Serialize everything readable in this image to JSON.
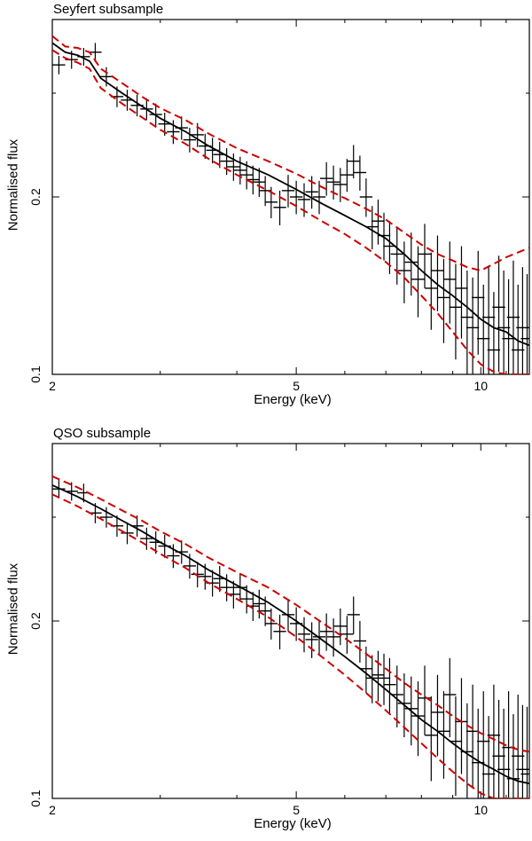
{
  "chart_data": [
    {
      "type": "line",
      "title": "Seyfert subsample",
      "xlabel": "Energy (keV)",
      "ylabel": "Normalised flux",
      "xscale": "log",
      "yscale": "log",
      "xlim": [
        2,
        12
      ],
      "ylim": [
        0.1,
        0.4
      ],
      "x_ticks": [
        {
          "value": 2,
          "label": "2"
        },
        {
          "value": 5,
          "label": "5"
        },
        {
          "value": 10,
          "label": "10"
        }
      ],
      "y_ticks": [
        {
          "value": 0.1,
          "label": "0.1"
        },
        {
          "value": 0.2,
          "label": "0.2"
        }
      ],
      "colors": {
        "model": "#000000",
        "envelope": "#cc0000",
        "data": "#000000"
      },
      "series": [
        {
          "name": "model",
          "style": "solid",
          "x": [
            2.0,
            2.1,
            2.2,
            2.3,
            2.4,
            2.6,
            2.8,
            3.0,
            3.3,
            3.6,
            4.0,
            4.5,
            5.0,
            5.5,
            6.0,
            6.5,
            7.0,
            7.5,
            8.0,
            8.5,
            9.0,
            9.5,
            10.0,
            10.5,
            11.0,
            11.5,
            12.0
          ],
          "y": [
            0.365,
            0.352,
            0.348,
            0.34,
            0.318,
            0.3,
            0.285,
            0.272,
            0.258,
            0.244,
            0.23,
            0.218,
            0.206,
            0.195,
            0.186,
            0.178,
            0.17,
            0.16,
            0.15,
            0.142,
            0.136,
            0.13,
            0.124,
            0.12,
            0.118,
            0.114,
            0.112
          ]
        },
        {
          "name": "upper envelope",
          "style": "dashed",
          "x": [
            2.0,
            2.1,
            2.2,
            2.3,
            2.4,
            2.6,
            2.8,
            3.0,
            3.3,
            3.6,
            4.0,
            4.5,
            5.0,
            5.5,
            6.0,
            6.5,
            7.0,
            7.5,
            8.0,
            8.5,
            9.0,
            9.5,
            10.0,
            10.5,
            11.0,
            11.5,
            12.0
          ],
          "y": [
            0.375,
            0.36,
            0.358,
            0.352,
            0.33,
            0.312,
            0.296,
            0.283,
            0.27,
            0.256,
            0.242,
            0.23,
            0.219,
            0.208,
            0.199,
            0.191,
            0.183,
            0.174,
            0.166,
            0.16,
            0.156,
            0.152,
            0.15,
            0.154,
            0.158,
            0.161,
            0.164
          ]
        },
        {
          "name": "lower envelope",
          "style": "dashed",
          "x": [
            2.0,
            2.1,
            2.2,
            2.3,
            2.4,
            2.6,
            2.8,
            3.0,
            3.3,
            3.6,
            4.0,
            4.5,
            5.0,
            5.5,
            6.0,
            6.5,
            7.0,
            7.5,
            8.0,
            8.5,
            9.0,
            9.5,
            10.0,
            10.5,
            11.0,
            11.5,
            12.0
          ],
          "y": [
            0.355,
            0.344,
            0.338,
            0.33,
            0.306,
            0.288,
            0.273,
            0.26,
            0.246,
            0.232,
            0.218,
            0.205,
            0.193,
            0.182,
            0.173,
            0.164,
            0.155,
            0.146,
            0.136,
            0.127,
            0.118,
            0.11,
            0.104,
            0.101,
            0.1,
            0.1,
            0.1
          ]
        }
      ],
      "data_points": {
        "x": [
          2.05,
          2.15,
          2.25,
          2.35,
          2.45,
          2.55,
          2.65,
          2.75,
          2.85,
          2.95,
          3.05,
          3.15,
          3.25,
          3.35,
          3.45,
          3.55,
          3.65,
          3.75,
          3.85,
          3.95,
          4.05,
          4.15,
          4.25,
          4.35,
          4.45,
          4.55,
          4.7,
          4.85,
          5.0,
          5.15,
          5.3,
          5.45,
          5.6,
          5.75,
          5.9,
          6.05,
          6.2,
          6.35,
          6.5,
          6.65,
          6.8,
          6.95,
          7.1,
          7.3,
          7.5,
          7.7,
          7.9,
          8.1,
          8.3,
          8.5,
          8.7,
          8.9,
          9.1,
          9.3,
          9.5,
          9.7,
          9.9,
          10.1,
          10.3,
          10.5,
          10.7,
          10.9,
          11.1,
          11.3,
          11.5,
          11.7,
          11.9
        ],
        "y": [
          0.335,
          0.342,
          0.346,
          0.352,
          0.32,
          0.296,
          0.292,
          0.286,
          0.282,
          0.276,
          0.266,
          0.258,
          0.262,
          0.25,
          0.255,
          0.244,
          0.24,
          0.236,
          0.23,
          0.225,
          0.222,
          0.218,
          0.214,
          0.212,
          0.205,
          0.196,
          0.192,
          0.205,
          0.2,
          0.198,
          0.204,
          0.2,
          0.215,
          0.212,
          0.21,
          0.218,
          0.23,
          0.22,
          0.2,
          0.178,
          0.182,
          0.172,
          0.165,
          0.16,
          0.15,
          0.155,
          0.145,
          0.16,
          0.14,
          0.15,
          0.135,
          0.145,
          0.13,
          0.14,
          0.125,
          0.12,
          0.135,
          0.115,
          0.125,
          0.11,
          0.13,
          0.12,
          0.115,
          0.125,
          0.11,
          0.12,
          0.115
        ],
        "yerr": [
          0.012,
          0.012,
          0.012,
          0.013,
          0.012,
          0.012,
          0.012,
          0.012,
          0.012,
          0.012,
          0.012,
          0.012,
          0.012,
          0.012,
          0.012,
          0.012,
          0.012,
          0.012,
          0.012,
          0.012,
          0.012,
          0.012,
          0.012,
          0.012,
          0.012,
          0.012,
          0.013,
          0.013,
          0.013,
          0.013,
          0.013,
          0.013,
          0.014,
          0.014,
          0.014,
          0.014,
          0.015,
          0.015,
          0.015,
          0.015,
          0.016,
          0.016,
          0.017,
          0.018,
          0.018,
          0.019,
          0.02,
          0.02,
          0.021,
          0.022,
          0.022,
          0.023,
          0.024,
          0.025,
          0.025,
          0.026,
          0.027,
          0.027,
          0.028,
          0.028,
          0.029,
          0.03,
          0.03,
          0.031,
          0.032,
          0.032,
          0.033
        ]
      }
    },
    {
      "type": "line",
      "title": "QSO subsample",
      "xlabel": "Energy (keV)",
      "ylabel": "Normalised flux",
      "xscale": "log",
      "yscale": "log",
      "xlim": [
        2,
        12
      ],
      "ylim": [
        0.1,
        0.4
      ],
      "x_ticks": [
        {
          "value": 2,
          "label": "2"
        },
        {
          "value": 5,
          "label": "5"
        },
        {
          "value": 10,
          "label": "10"
        }
      ],
      "y_ticks": [
        {
          "value": 0.1,
          "label": "0.1"
        },
        {
          "value": 0.2,
          "label": "0.2"
        }
      ],
      "colors": {
        "model": "#000000",
        "envelope": "#cc0000",
        "data": "#000000"
      },
      "series": [
        {
          "name": "model",
          "style": "solid",
          "x": [
            2.0,
            2.2,
            2.4,
            2.6,
            2.8,
            3.0,
            3.3,
            3.6,
            4.0,
            4.5,
            5.0,
            5.5,
            6.0,
            6.5,
            7.0,
            7.5,
            8.0,
            8.5,
            9.0,
            9.5,
            10.0,
            10.5,
            11.0,
            11.5,
            12.0
          ],
          "y": [
            0.34,
            0.325,
            0.31,
            0.296,
            0.284,
            0.272,
            0.258,
            0.244,
            0.23,
            0.215,
            0.2,
            0.186,
            0.174,
            0.163,
            0.153,
            0.144,
            0.136,
            0.13,
            0.124,
            0.119,
            0.115,
            0.112,
            0.109,
            0.107,
            0.106
          ]
        },
        {
          "name": "upper envelope",
          "style": "dashed",
          "x": [
            2.0,
            2.2,
            2.4,
            2.6,
            2.8,
            3.0,
            3.3,
            3.6,
            4.0,
            4.5,
            5.0,
            5.5,
            6.0,
            6.5,
            7.0,
            7.5,
            8.0,
            8.5,
            9.0,
            9.5,
            10.0,
            10.5,
            11.0,
            11.5,
            12.0
          ],
          "y": [
            0.352,
            0.337,
            0.322,
            0.308,
            0.296,
            0.284,
            0.27,
            0.256,
            0.242,
            0.228,
            0.213,
            0.199,
            0.187,
            0.176,
            0.166,
            0.157,
            0.15,
            0.144,
            0.138,
            0.133,
            0.129,
            0.126,
            0.123,
            0.121,
            0.12
          ]
        },
        {
          "name": "lower envelope",
          "style": "dashed",
          "x": [
            2.0,
            2.2,
            2.4,
            2.6,
            2.8,
            3.0,
            3.3,
            3.6,
            4.0,
            4.5,
            5.0,
            5.5,
            6.0,
            6.5,
            7.0,
            7.5,
            8.0,
            8.5,
            9.0,
            9.5,
            10.0,
            10.5,
            11.0,
            11.5,
            12.0
          ],
          "y": [
            0.328,
            0.313,
            0.298,
            0.284,
            0.272,
            0.26,
            0.246,
            0.232,
            0.218,
            0.203,
            0.188,
            0.174,
            0.162,
            0.151,
            0.141,
            0.132,
            0.124,
            0.117,
            0.111,
            0.106,
            0.102,
            0.1,
            0.1,
            0.1,
            0.1
          ]
        }
      ],
      "data_points": {
        "x": [
          2.05,
          2.15,
          2.25,
          2.35,
          2.45,
          2.55,
          2.65,
          2.75,
          2.85,
          2.95,
          3.05,
          3.15,
          3.25,
          3.35,
          3.45,
          3.55,
          3.65,
          3.75,
          3.85,
          3.95,
          4.05,
          4.15,
          4.25,
          4.35,
          4.45,
          4.55,
          4.7,
          4.85,
          5.0,
          5.15,
          5.3,
          5.45,
          5.6,
          5.75,
          5.9,
          6.05,
          6.2,
          6.35,
          6.5,
          6.65,
          6.8,
          6.95,
          7.1,
          7.3,
          7.5,
          7.7,
          7.9,
          8.1,
          8.3,
          8.5,
          8.7,
          8.9,
          9.1,
          9.3,
          9.5,
          9.7,
          9.9,
          10.1,
          10.3,
          10.5,
          10.7,
          10.9,
          11.1,
          11.3,
          11.5,
          11.7,
          11.9
        ],
        "y": [
          0.335,
          0.332,
          0.33,
          0.305,
          0.3,
          0.29,
          0.282,
          0.29,
          0.276,
          0.272,
          0.268,
          0.258,
          0.262,
          0.248,
          0.24,
          0.238,
          0.232,
          0.236,
          0.228,
          0.222,
          0.228,
          0.218,
          0.212,
          0.214,
          0.208,
          0.198,
          0.192,
          0.205,
          0.198,
          0.19,
          0.186,
          0.188,
          0.192,
          0.188,
          0.196,
          0.19,
          0.205,
          0.185,
          0.166,
          0.16,
          0.162,
          0.16,
          0.156,
          0.15,
          0.145,
          0.142,
          0.138,
          0.148,
          0.128,
          0.14,
          0.13,
          0.15,
          0.125,
          0.135,
          0.12,
          0.13,
          0.115,
          0.125,
          0.11,
          0.128,
          0.118,
          0.112,
          0.122,
          0.108,
          0.118,
          0.112,
          0.11
        ],
        "yerr": [
          0.012,
          0.012,
          0.012,
          0.012,
          0.012,
          0.012,
          0.012,
          0.012,
          0.012,
          0.012,
          0.012,
          0.012,
          0.012,
          0.012,
          0.012,
          0.012,
          0.012,
          0.012,
          0.012,
          0.012,
          0.012,
          0.012,
          0.012,
          0.012,
          0.012,
          0.012,
          0.013,
          0.013,
          0.013,
          0.013,
          0.013,
          0.013,
          0.014,
          0.014,
          0.014,
          0.014,
          0.015,
          0.015,
          0.015,
          0.015,
          0.016,
          0.016,
          0.017,
          0.018,
          0.018,
          0.019,
          0.02,
          0.02,
          0.021,
          0.022,
          0.022,
          0.023,
          0.024,
          0.025,
          0.025,
          0.026,
          0.027,
          0.027,
          0.028,
          0.028,
          0.029,
          0.03,
          0.03,
          0.031,
          0.032,
          0.032,
          0.033
        ]
      }
    }
  ]
}
